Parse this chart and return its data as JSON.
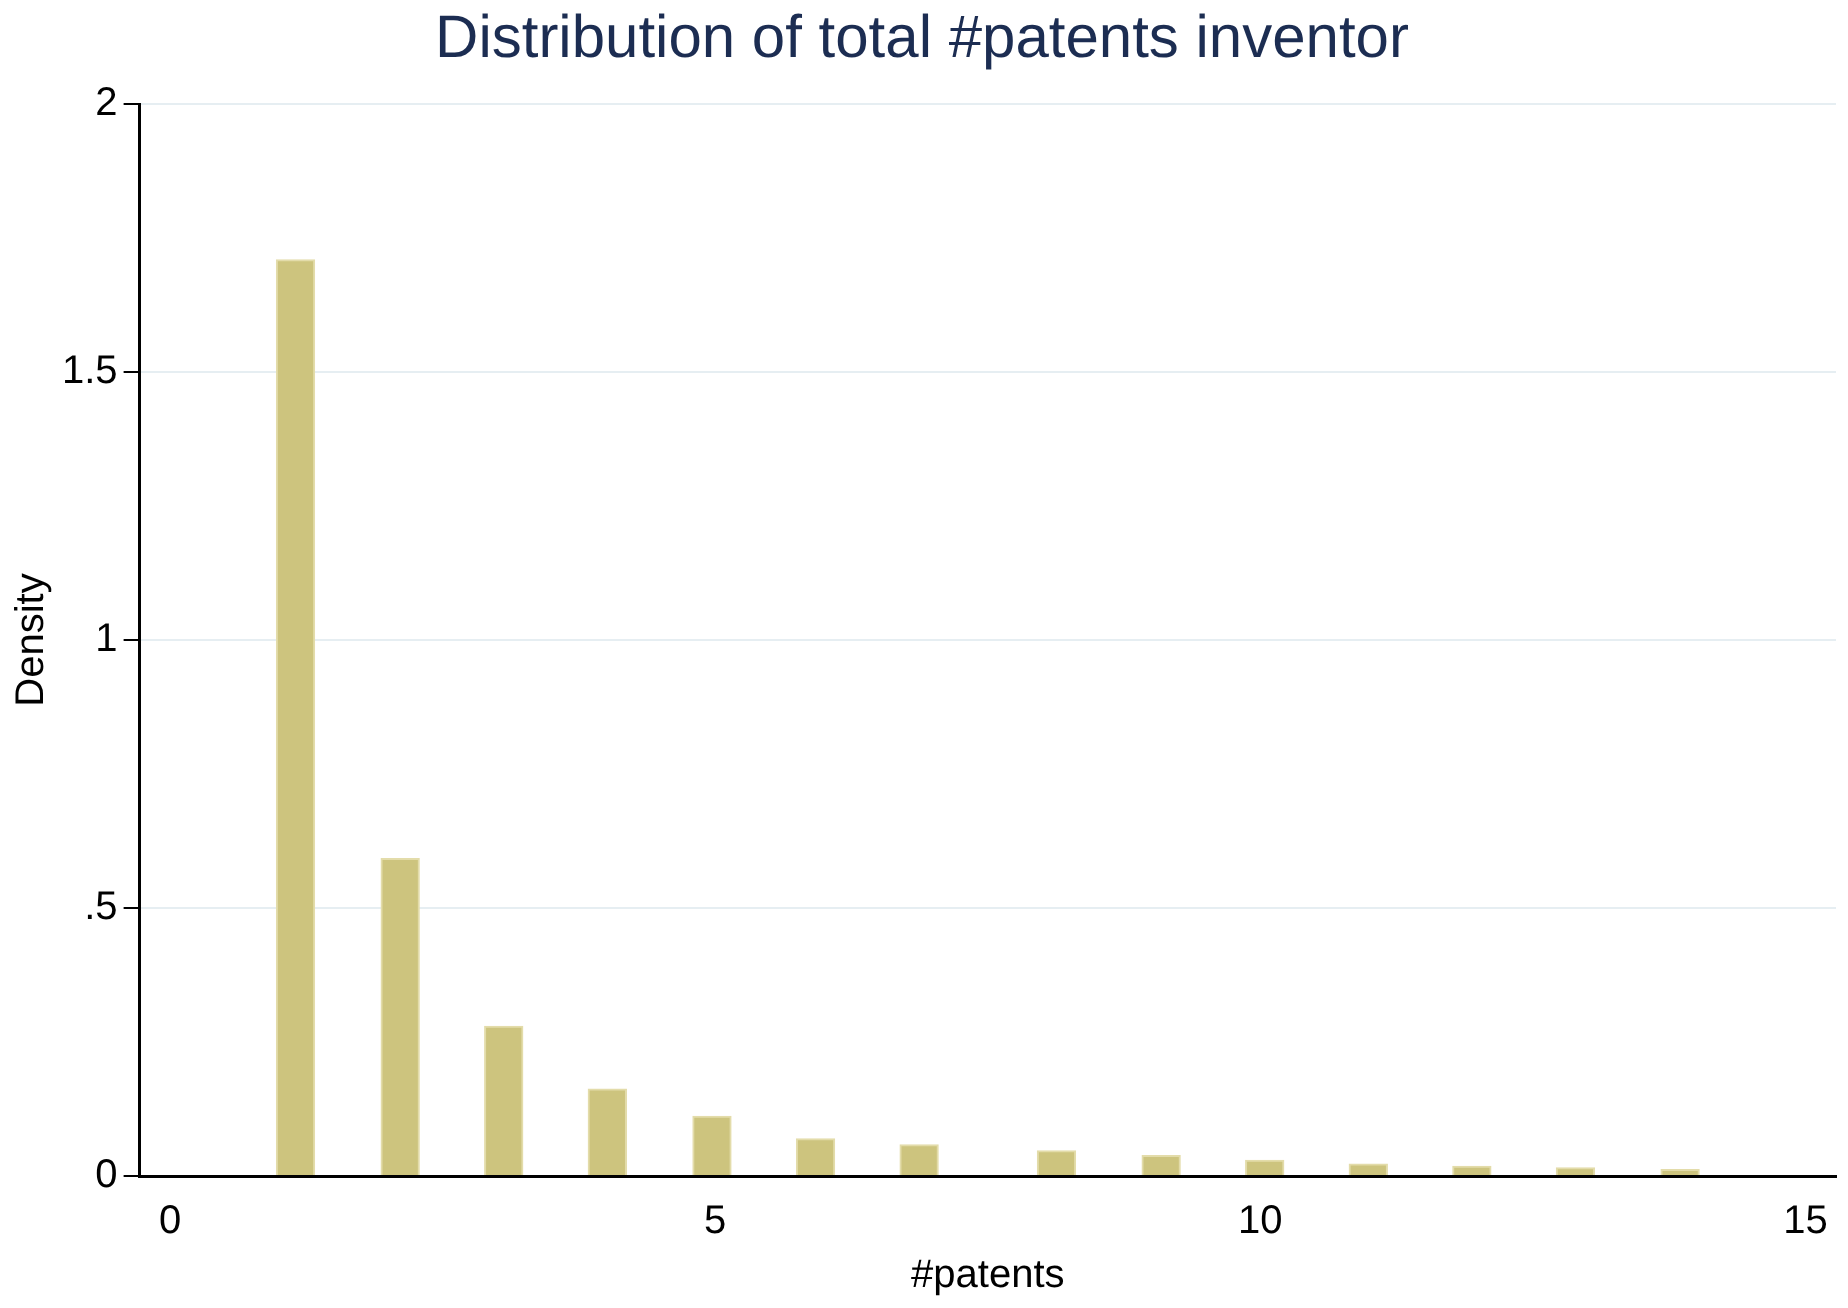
{
  "chart_data": {
    "type": "bar",
    "title": "Distribution of total #patents inventor",
    "xlabel": "#patents",
    "ylabel": "Density",
    "x": [
      1.15,
      2.11,
      3.06,
      4.01,
      4.97,
      5.92,
      6.87,
      8.13,
      9.09,
      10.04,
      10.99,
      11.94,
      12.89,
      13.85
    ],
    "values": [
      1.709,
      0.592,
      0.279,
      0.162,
      0.111,
      0.069,
      0.058,
      0.047,
      0.038,
      0.029,
      0.022,
      0.018,
      0.015,
      0.012
    ],
    "color": "#cdc47e",
    "xlim": [
      -0.28,
      15.28
    ],
    "xticks": [
      0,
      5,
      10,
      15
    ],
    "ylim": [
      0,
      2
    ],
    "yticks": [
      0,
      {
        "value": 0.5,
        "label": ".5"
      },
      1,
      1.5,
      2
    ],
    "grid": "y",
    "legend": false
  }
}
